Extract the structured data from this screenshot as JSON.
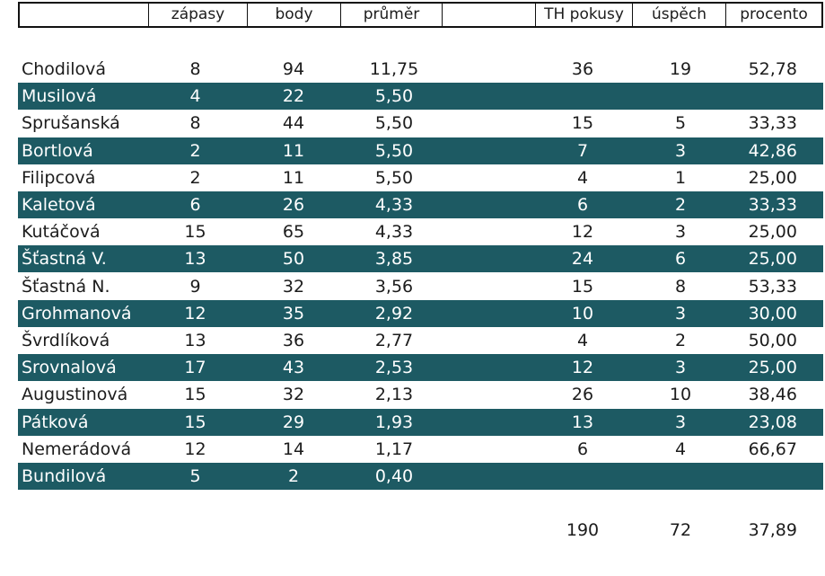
{
  "table": {
    "headers": [
      "",
      "zápasy",
      "body",
      "průměr",
      "",
      "TH pokusy",
      "úspěch",
      "procento"
    ],
    "rows": [
      {
        "name": "Chodilová",
        "zapasy": "8",
        "body": "94",
        "prumer": "11,75",
        "th": "36",
        "uspech": "19",
        "procento": "52,78"
      },
      {
        "name": "Musilová",
        "zapasy": "4",
        "body": "22",
        "prumer": "5,50",
        "th": "",
        "uspech": "",
        "procento": ""
      },
      {
        "name": "Sprušanská",
        "zapasy": "8",
        "body": "44",
        "prumer": "5,50",
        "th": "15",
        "uspech": "5",
        "procento": "33,33"
      },
      {
        "name": "Bortlová",
        "zapasy": "2",
        "body": "11",
        "prumer": "5,50",
        "th": "7",
        "uspech": "3",
        "procento": "42,86"
      },
      {
        "name": "Filipcová",
        "zapasy": "2",
        "body": "11",
        "prumer": "5,50",
        "th": "4",
        "uspech": "1",
        "procento": "25,00"
      },
      {
        "name": "Kaletová",
        "zapasy": "6",
        "body": "26",
        "prumer": "4,33",
        "th": "6",
        "uspech": "2",
        "procento": "33,33"
      },
      {
        "name": "Kutáčová",
        "zapasy": "15",
        "body": "65",
        "prumer": "4,33",
        "th": "12",
        "uspech": "3",
        "procento": "25,00"
      },
      {
        "name": "Šťastná V.",
        "zapasy": "13",
        "body": "50",
        "prumer": "3,85",
        "th": "24",
        "uspech": "6",
        "procento": "25,00"
      },
      {
        "name": "Šťastná N.",
        "zapasy": "9",
        "body": "32",
        "prumer": "3,56",
        "th": "15",
        "uspech": "8",
        "procento": "53,33"
      },
      {
        "name": "Grohmanová",
        "zapasy": "12",
        "body": "35",
        "prumer": "2,92",
        "th": "10",
        "uspech": "3",
        "procento": "30,00"
      },
      {
        "name": "Švrdlíková",
        "zapasy": "13",
        "body": "36",
        "prumer": "2,77",
        "th": "4",
        "uspech": "2",
        "procento": "50,00"
      },
      {
        "name": "Srovnalová",
        "zapasy": "17",
        "body": "43",
        "prumer": "2,53",
        "th": "12",
        "uspech": "3",
        "procento": "25,00"
      },
      {
        "name": "Augustinová",
        "zapasy": "15",
        "body": "32",
        "prumer": "2,13",
        "th": "26",
        "uspech": "10",
        "procento": "38,46"
      },
      {
        "name": "Pátková",
        "zapasy": "15",
        "body": "29",
        "prumer": "1,93",
        "th": "13",
        "uspech": "3",
        "procento": "23,08"
      },
      {
        "name": "Nemerádová",
        "zapasy": "12",
        "body": "14",
        "prumer": "1,17",
        "th": "6",
        "uspech": "4",
        "procento": "66,67"
      },
      {
        "name": "Bundilová",
        "zapasy": "5",
        "body": "2",
        "prumer": "0,40",
        "th": "",
        "uspech": "",
        "procento": ""
      }
    ],
    "totals": {
      "th": "190",
      "uspech": "72",
      "procento": "37,89"
    }
  },
  "colors": {
    "band": "#1d5a63",
    "text_dark": "#1c1c1c",
    "text_light": "#ffffff"
  }
}
